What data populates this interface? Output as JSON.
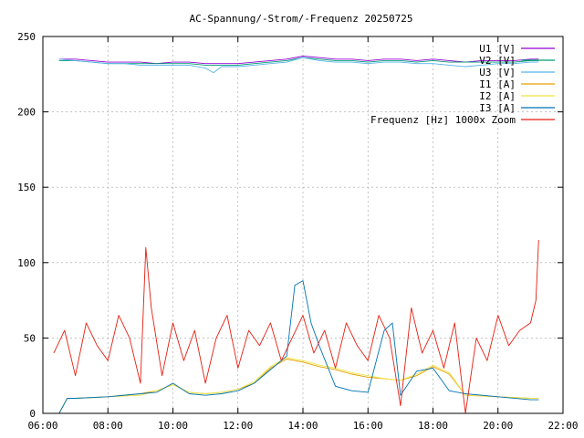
{
  "chart_data": {
    "type": "line",
    "title": "AC-Spannung/-Strom/-Frequenz 20250725",
    "xlabel": "",
    "ylabel": "",
    "xlim": [
      "06:00",
      "22:00"
    ],
    "ylim": [
      0,
      250
    ],
    "xticks": [
      "06:00",
      "08:00",
      "10:00",
      "12:00",
      "14:00",
      "16:00",
      "18:00",
      "20:00",
      "22:00"
    ],
    "yticks": [
      "0",
      "50",
      "100",
      "150",
      "200",
      "250"
    ],
    "grid": true,
    "legend_position": "top-right",
    "series": [
      {
        "name": "U1 [V]",
        "color": "#9400d3",
        "x": [
          "06:30",
          "07:00",
          "07:30",
          "08:00",
          "08:30",
          "09:00",
          "09:30",
          "10:00",
          "10:30",
          "11:00",
          "11:30",
          "12:00",
          "12:30",
          "13:00",
          "13:30",
          "14:00",
          "14:30",
          "15:00",
          "15:30",
          "16:00",
          "16:30",
          "17:00",
          "17:30",
          "18:00",
          "18:30",
          "19:00",
          "19:30",
          "20:00",
          "20:30",
          "21:00",
          "21:15"
        ],
        "y": [
          235,
          235,
          234,
          233,
          233,
          233,
          232,
          233,
          233,
          232,
          232,
          232,
          233,
          234,
          235,
          237,
          236,
          235,
          235,
          234,
          235,
          235,
          234,
          235,
          234,
          233,
          234,
          234,
          234,
          235,
          235
        ]
      },
      {
        "name": "V2 [V]",
        "color": "#009e73",
        "x": [
          "06:30",
          "07:00",
          "07:30",
          "08:00",
          "08:30",
          "09:00",
          "09:30",
          "10:00",
          "10:30",
          "11:00",
          "11:30",
          "12:00",
          "12:30",
          "13:00",
          "13:30",
          "14:00",
          "14:30",
          "15:00",
          "15:30",
          "16:00",
          "16:30",
          "17:00",
          "17:30",
          "18:00",
          "18:30",
          "19:00",
          "19:30",
          "20:00",
          "20:30",
          "21:00",
          "21:15"
        ],
        "y": [
          234,
          234,
          233,
          232,
          232,
          232,
          232,
          232,
          232,
          231,
          231,
          231,
          232,
          233,
          234,
          236,
          235,
          234,
          234,
          233,
          234,
          234,
          233,
          234,
          233,
          233,
          233,
          233,
          233,
          234,
          234
        ]
      },
      {
        "name": "U3 [V]",
        "color": "#56b4e9",
        "x": [
          "06:30",
          "07:00",
          "07:30",
          "08:00",
          "08:30",
          "09:00",
          "09:30",
          "10:00",
          "10:30",
          "11:00",
          "11:15",
          "11:30",
          "12:00",
          "12:30",
          "13:00",
          "13:30",
          "14:00",
          "14:30",
          "15:00",
          "15:30",
          "16:00",
          "16:30",
          "17:00",
          "17:30",
          "18:00",
          "18:30",
          "19:00",
          "19:30",
          "20:00",
          "20:30",
          "21:00",
          "21:15"
        ],
        "y": [
          235,
          234,
          233,
          232,
          232,
          231,
          231,
          231,
          231,
          229,
          226,
          230,
          230,
          231,
          232,
          233,
          236,
          234,
          233,
          233,
          232,
          233,
          233,
          232,
          232,
          231,
          230,
          231,
          232,
          232,
          233,
          233
        ]
      },
      {
        "name": "I1 [A]",
        "color": "#e69f00",
        "x": [
          "06:30",
          "06:45",
          "07:00",
          "08:00",
          "09:00",
          "09:30",
          "10:00",
          "10:30",
          "11:00",
          "11:30",
          "12:00",
          "12:30",
          "13:00",
          "13:30",
          "14:00",
          "14:30",
          "15:00",
          "15:30",
          "16:00",
          "16:30",
          "17:00",
          "17:30",
          "18:00",
          "18:30",
          "19:00",
          "20:00",
          "21:00",
          "21:15"
        ],
        "y": [
          0,
          10,
          10,
          11,
          13,
          15,
          19,
          14,
          13,
          14,
          16,
          20,
          30,
          36,
          34,
          31,
          29,
          26,
          24,
          23,
          22,
          25,
          31,
          26,
          12,
          11,
          10,
          10
        ]
      },
      {
        "name": "I2 [A]",
        "color": "#f0e442",
        "x": [
          "06:30",
          "06:45",
          "07:00",
          "08:00",
          "09:00",
          "09:30",
          "10:00",
          "10:30",
          "11:00",
          "11:30",
          "12:00",
          "12:30",
          "13:00",
          "13:30",
          "14:00",
          "14:30",
          "15:00",
          "15:30",
          "16:00",
          "16:30",
          "17:00",
          "17:30",
          "18:00",
          "18:30",
          "19:00",
          "20:00",
          "21:00",
          "21:15"
        ],
        "y": [
          0,
          10,
          10,
          11,
          12,
          15,
          19,
          14,
          13,
          14,
          16,
          21,
          31,
          37,
          35,
          32,
          30,
          27,
          25,
          23,
          22,
          26,
          32,
          27,
          12,
          11,
          10,
          10
        ]
      },
      {
        "name": "I3 [A]",
        "color": "#0072b2",
        "x": [
          "06:30",
          "06:45",
          "07:00",
          "08:00",
          "09:00",
          "09:30",
          "10:00",
          "10:30",
          "11:00",
          "11:30",
          "12:00",
          "12:30",
          "13:00",
          "13:30",
          "13:45",
          "14:00",
          "14:15",
          "14:30",
          "15:00",
          "15:30",
          "16:00",
          "16:30",
          "16:45",
          "17:00",
          "17:30",
          "18:00",
          "18:30",
          "19:00",
          "20:00",
          "21:00",
          "21:15"
        ],
        "y": [
          0,
          10,
          10,
          11,
          13,
          14,
          20,
          13,
          12,
          13,
          15,
          20,
          29,
          38,
          85,
          88,
          60,
          45,
          18,
          15,
          14,
          55,
          60,
          12,
          28,
          30,
          15,
          13,
          11,
          9,
          9
        ]
      },
      {
        "name": "Frequenz [Hz] 1000x Zoom",
        "color": "#e51e10",
        "x": [
          "06:20",
          "06:40",
          "07:00",
          "07:20",
          "07:40",
          "08:00",
          "08:20",
          "08:40",
          "09:00",
          "09:10",
          "09:20",
          "09:40",
          "10:00",
          "10:20",
          "10:40",
          "11:00",
          "11:20",
          "11:40",
          "12:00",
          "12:20",
          "12:40",
          "13:00",
          "13:20",
          "13:40",
          "14:00",
          "14:20",
          "14:40",
          "15:00",
          "15:20",
          "15:40",
          "16:00",
          "16:20",
          "16:40",
          "17:00",
          "17:20",
          "17:40",
          "18:00",
          "18:20",
          "18:40",
          "19:00",
          "19:20",
          "19:40",
          "20:00",
          "20:20",
          "20:40",
          "21:00",
          "21:10",
          "21:15"
        ],
        "y": [
          40,
          55,
          25,
          60,
          45,
          35,
          65,
          50,
          20,
          110,
          70,
          25,
          60,
          35,
          55,
          20,
          50,
          65,
          30,
          55,
          45,
          60,
          35,
          50,
          65,
          40,
          55,
          30,
          60,
          45,
          35,
          65,
          50,
          5,
          70,
          40,
          55,
          30,
          60,
          0,
          50,
          35,
          65,
          45,
          55,
          60,
          75,
          115
        ]
      }
    ]
  }
}
